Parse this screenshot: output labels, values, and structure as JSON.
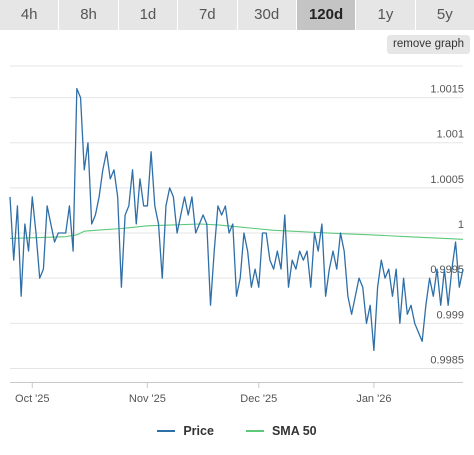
{
  "tabs": [
    "4h",
    "8h",
    "1d",
    "7d",
    "30d",
    "120d",
    "1y",
    "5y"
  ],
  "active_tab": "120d",
  "remove_graph_label": "remove graph",
  "colors": {
    "price": "#2f6fa8",
    "sma": "#5cc97a",
    "grid": "#e5e5e5",
    "axis": "#c8c8c8"
  },
  "chart_data": {
    "type": "line",
    "title": "",
    "xlabel": "",
    "ylabel": "",
    "ylim": [
      0.99835,
      1.00185
    ],
    "xlim": [
      "2025-09-25",
      "2026-01-25"
    ],
    "x_ticks": [
      {
        "date": "2025-10-01",
        "label": "Oct '25"
      },
      {
        "date": "2025-11-01",
        "label": "Nov '25"
      },
      {
        "date": "2025-12-01",
        "label": "Dec '25"
      },
      {
        "date": "2026-01-01",
        "label": "Jan '26"
      }
    ],
    "y_ticks": [
      {
        "value": 0.9985,
        "label": "0.9985"
      },
      {
        "value": 0.999,
        "label": "0.999"
      },
      {
        "value": 0.9995,
        "label": "0.9995"
      },
      {
        "value": 1.0,
        "label": "1"
      },
      {
        "value": 1.0005,
        "label": "1.0005"
      },
      {
        "value": 1.001,
        "label": "1.001"
      },
      {
        "value": 1.0015,
        "label": "1.0015"
      }
    ],
    "legend_position": "bottom",
    "grid": true,
    "series": [
      {
        "name": "Price",
        "color": "#2f6fa8",
        "points": [
          [
            "2025-09-25",
            1.0004
          ],
          [
            "2025-09-26",
            0.9997
          ],
          [
            "2025-09-27",
            1.0003
          ],
          [
            "2025-09-28",
            0.9993
          ],
          [
            "2025-09-29",
            1.0001
          ],
          [
            "2025-09-30",
            0.9998
          ],
          [
            "2025-10-01",
            1.0004
          ],
          [
            "2025-10-02",
            1.0
          ],
          [
            "2025-10-03",
            0.9995
          ],
          [
            "2025-10-04",
            0.9996
          ],
          [
            "2025-10-05",
            1.0003
          ],
          [
            "2025-10-06",
            1.0001
          ],
          [
            "2025-10-07",
            0.9999
          ],
          [
            "2025-10-08",
            1.0
          ],
          [
            "2025-10-09",
            1.0
          ],
          [
            "2025-10-10",
            1.0
          ],
          [
            "2025-10-11",
            1.0003
          ],
          [
            "2025-10-12",
            0.9998
          ],
          [
            "2025-10-13",
            1.0016
          ],
          [
            "2025-10-14",
            1.0015
          ],
          [
            "2025-10-15",
            1.0007
          ],
          [
            "2025-10-16",
            1.001
          ],
          [
            "2025-10-17",
            1.0001
          ],
          [
            "2025-10-18",
            1.0002
          ],
          [
            "2025-10-19",
            1.0004
          ],
          [
            "2025-10-20",
            1.0007
          ],
          [
            "2025-10-21",
            1.0009
          ],
          [
            "2025-10-22",
            1.0006
          ],
          [
            "2025-10-23",
            1.0007
          ],
          [
            "2025-10-24",
            1.0004
          ],
          [
            "2025-10-25",
            0.9994
          ],
          [
            "2025-10-26",
            1.0002
          ],
          [
            "2025-10-27",
            1.0003
          ],
          [
            "2025-10-28",
            1.0007
          ],
          [
            "2025-10-29",
            1.0001
          ],
          [
            "2025-10-30",
            1.0006
          ],
          [
            "2025-10-31",
            1.0003
          ],
          [
            "2025-11-01",
            1.0003
          ],
          [
            "2025-11-02",
            1.0009
          ],
          [
            "2025-11-03",
            1.0003
          ],
          [
            "2025-11-04",
            1.0001
          ],
          [
            "2025-11-05",
            0.9995
          ],
          [
            "2025-11-06",
            1.0003
          ],
          [
            "2025-11-07",
            1.0005
          ],
          [
            "2025-11-08",
            1.0004
          ],
          [
            "2025-11-09",
            1.0
          ],
          [
            "2025-11-10",
            1.0002
          ],
          [
            "2025-11-11",
            1.0004
          ],
          [
            "2025-11-12",
            1.0002
          ],
          [
            "2025-11-13",
            1.0004
          ],
          [
            "2025-11-14",
            1.0
          ],
          [
            "2025-11-15",
            1.0001
          ],
          [
            "2025-11-16",
            1.0002
          ],
          [
            "2025-11-17",
            1.0001
          ],
          [
            "2025-11-18",
            0.9992
          ],
          [
            "2025-11-19",
            0.9998
          ],
          [
            "2025-11-20",
            1.0003
          ],
          [
            "2025-11-21",
            1.0002
          ],
          [
            "2025-11-22",
            1.0003
          ],
          [
            "2025-11-23",
            1.0
          ],
          [
            "2025-11-24",
            1.0001
          ],
          [
            "2025-11-25",
            0.9993
          ],
          [
            "2025-11-26",
            0.9995
          ],
          [
            "2025-11-27",
            1.0
          ],
          [
            "2025-11-28",
            0.9998
          ],
          [
            "2025-11-29",
            0.9994
          ],
          [
            "2025-11-30",
            0.9996
          ],
          [
            "2025-12-01",
            0.9994
          ],
          [
            "2025-12-02",
            1.0
          ],
          [
            "2025-12-03",
            1.0
          ],
          [
            "2025-12-04",
            0.9997
          ],
          [
            "2025-12-05",
            0.9996
          ],
          [
            "2025-12-06",
            0.9998
          ],
          [
            "2025-12-07",
            0.9996
          ],
          [
            "2025-12-08",
            1.0002
          ],
          [
            "2025-12-09",
            0.9994
          ],
          [
            "2025-12-10",
            0.9997
          ],
          [
            "2025-12-11",
            0.9996
          ],
          [
            "2025-12-12",
            0.9998
          ],
          [
            "2025-12-13",
            0.9997
          ],
          [
            "2025-12-14",
            0.9998
          ],
          [
            "2025-12-15",
            0.9994
          ],
          [
            "2025-12-16",
            1.0
          ],
          [
            "2025-12-17",
            0.9998
          ],
          [
            "2025-12-18",
            1.0001
          ],
          [
            "2025-12-19",
            0.9993
          ],
          [
            "2025-12-20",
            0.9996
          ],
          [
            "2025-12-21",
            0.9998
          ],
          [
            "2025-12-22",
            0.9996
          ],
          [
            "2025-12-23",
            1.0
          ],
          [
            "2025-12-24",
            0.9998
          ],
          [
            "2025-12-25",
            0.9993
          ],
          [
            "2025-12-26",
            0.9991
          ],
          [
            "2025-12-27",
            0.9993
          ],
          [
            "2025-12-28",
            0.9995
          ],
          [
            "2025-12-29",
            0.9994
          ],
          [
            "2025-12-30",
            0.999
          ],
          [
            "2025-12-31",
            0.9992
          ],
          [
            "2026-01-01",
            0.9987
          ],
          [
            "2026-01-02",
            0.9994
          ],
          [
            "2026-01-03",
            0.9997
          ],
          [
            "2026-01-04",
            0.9995
          ],
          [
            "2026-01-05",
            0.9996
          ],
          [
            "2026-01-06",
            0.9993
          ],
          [
            "2026-01-07",
            0.9996
          ],
          [
            "2026-01-08",
            0.999
          ],
          [
            "2026-01-09",
            0.9995
          ],
          [
            "2026-01-10",
            0.9991
          ],
          [
            "2026-01-11",
            0.9992
          ],
          [
            "2026-01-12",
            0.999
          ],
          [
            "2026-01-13",
            0.9989
          ],
          [
            "2026-01-14",
            0.9988
          ],
          [
            "2026-01-15",
            0.9992
          ],
          [
            "2026-01-16",
            0.9995
          ],
          [
            "2026-01-17",
            0.9993
          ],
          [
            "2026-01-18",
            0.9996
          ],
          [
            "2026-01-19",
            0.9992
          ],
          [
            "2026-01-20",
            0.9996
          ],
          [
            "2026-01-21",
            0.9992
          ],
          [
            "2026-01-22",
            0.9996
          ],
          [
            "2026-01-23",
            0.9999
          ],
          [
            "2026-01-24",
            0.9994
          ],
          [
            "2026-01-25",
            0.9996
          ]
        ]
      },
      {
        "name": "SMA 50",
        "color": "#5cc97a",
        "points": [
          [
            "2025-09-25",
            0.99994
          ],
          [
            "2025-10-03",
            0.99995
          ],
          [
            "2025-10-10",
            0.99996
          ],
          [
            "2025-10-13",
            0.99998
          ],
          [
            "2025-10-15",
            1.00002
          ],
          [
            "2025-10-18",
            1.00003
          ],
          [
            "2025-10-25",
            1.00005
          ],
          [
            "2025-11-01",
            1.00008
          ],
          [
            "2025-11-08",
            1.00009
          ],
          [
            "2025-11-15",
            1.0001
          ],
          [
            "2025-11-20",
            1.00009
          ],
          [
            "2025-11-25",
            1.00007
          ],
          [
            "2025-11-30",
            1.00005
          ],
          [
            "2025-12-05",
            1.00003
          ],
          [
            "2025-12-10",
            1.00002
          ],
          [
            "2025-12-15",
            1.00001
          ],
          [
            "2025-12-20",
            1.0
          ],
          [
            "2025-12-25",
            0.99999
          ],
          [
            "2025-12-31",
            0.99998
          ],
          [
            "2026-01-05",
            0.99997
          ],
          [
            "2026-01-10",
            0.99996
          ],
          [
            "2026-01-15",
            0.99995
          ],
          [
            "2026-01-20",
            0.99994
          ],
          [
            "2026-01-25",
            0.99993
          ]
        ]
      }
    ]
  }
}
